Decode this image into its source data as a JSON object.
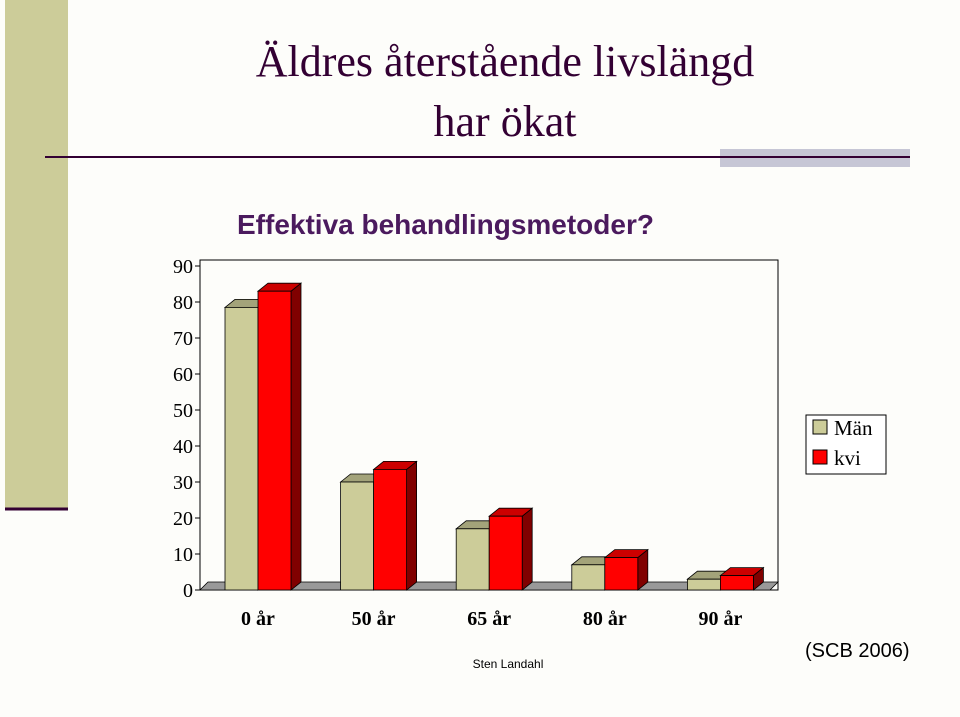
{
  "chart_data": {
    "type": "bar3d",
    "title_lines": [
      "Äldres återstående livslängd",
      "har ökat"
    ],
    "subtitle": "Effektiva behandlingsmetoder?",
    "categories": [
      "0 år",
      "50 år",
      "65 år",
      "80 år",
      "90 år"
    ],
    "series": [
      {
        "name": "Män",
        "color": "#cccc99",
        "values": [
          78.5,
          30,
          17,
          7,
          3
        ]
      },
      {
        "name": "kvi",
        "color": "#ff0000",
        "values": [
          83,
          33.5,
          20.5,
          9,
          4
        ]
      }
    ],
    "ylim": [
      0,
      90
    ],
    "yticks": [
      0,
      10,
      20,
      30,
      40,
      50,
      60,
      70,
      80,
      90
    ],
    "legend": "right",
    "source": "(SCB 2006)",
    "footer": "Sten Landahl"
  }
}
